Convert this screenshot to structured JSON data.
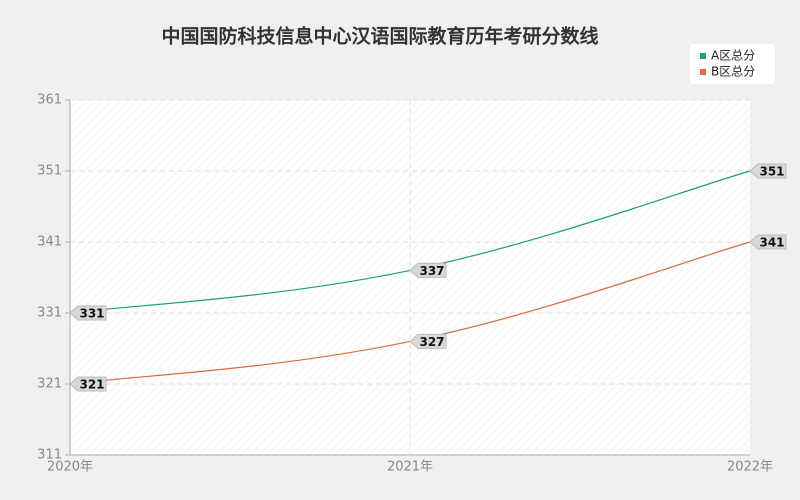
{
  "chart_data": {
    "type": "line",
    "title": "中国国防科技信息中心汉语国际教育历年考研分数线",
    "categories": [
      "2020年",
      "2021年",
      "2022年"
    ],
    "series": [
      {
        "name": "A区总分",
        "color": "#1f9e78",
        "values": [
          331,
          337,
          351
        ]
      },
      {
        "name": "B区总分",
        "color": "#e0693d",
        "values": [
          321,
          327,
          341
        ]
      }
    ],
    "ylim": [
      311,
      361
    ],
    "yticks": [
      311,
      321,
      331,
      341,
      351,
      361
    ],
    "grid": true,
    "legend": "top-right"
  }
}
